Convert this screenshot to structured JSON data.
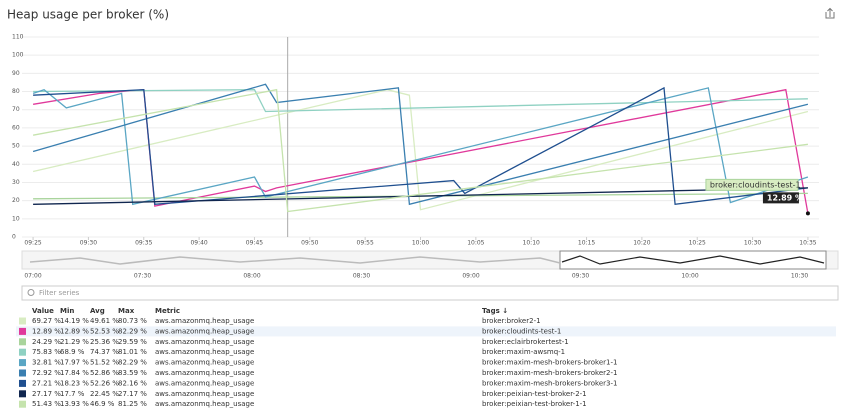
{
  "header": {
    "title": "Heap usage per broker (%)"
  },
  "chart_data": {
    "type": "line",
    "xlim": [
      "09:24",
      "10:36"
    ],
    "xticks": [
      "09:25",
      "09:30",
      "09:35",
      "09:40",
      "09:45",
      "09:50",
      "09:55",
      "10:00",
      "10:05",
      "10:10",
      "10:15",
      "10:20",
      "10:25",
      "10:30",
      "10:35"
    ],
    "ylim": [
      0,
      110
    ],
    "yticks": [
      0,
      10,
      20,
      30,
      40,
      50,
      60,
      70,
      80,
      90,
      100,
      110
    ],
    "grid": true,
    "crosshair": "09:48",
    "tooltip": {
      "series": 1,
      "label": "broker:cloudints-test-1",
      "value_label": "12.89 %"
    },
    "series": [
      {
        "name": "broker:broker2-1",
        "color": "#d8ecc2",
        "x": [
          "09:25",
          "09:57",
          "09:59",
          "10:00",
          "10:35"
        ],
        "values": [
          36,
          81,
          78,
          15,
          69
        ]
      },
      {
        "name": "broker:cloudints-test-1",
        "color": "#e0399b",
        "x": [
          "09:25",
          "09:31",
          "09:35",
          "09:36",
          "09:45",
          "09:46",
          "09:47",
          "10:33",
          "10:35"
        ],
        "values": [
          73,
          79,
          81,
          17,
          28,
          25,
          27,
          81,
          13
        ]
      },
      {
        "name": "broker:eclairbrokertest-1",
        "color": "#a9d49c",
        "x": [
          "09:25",
          "10:35"
        ],
        "values": [
          21,
          24
        ]
      },
      {
        "name": "broker:maxim-awsmq-1",
        "color": "#8fd1c2",
        "x": [
          "09:25",
          "09:45",
          "09:46",
          "10:35"
        ],
        "values": [
          80,
          81,
          69,
          76
        ]
      },
      {
        "name": "broker:maxim-mesh-brokers-broker1-1",
        "color": "#5aa6c4",
        "x": [
          "09:25",
          "09:26",
          "09:28",
          "09:33",
          "09:34",
          "09:45",
          "09:46",
          "10:26",
          "10:28",
          "10:35"
        ],
        "values": [
          79,
          81,
          71,
          79,
          18,
          33,
          22,
          82,
          19,
          33
        ]
      },
      {
        "name": "broker:maxim-mesh-brokers-broker2-1",
        "color": "#3a7fb0",
        "x": [
          "09:25",
          "09:46",
          "09:47",
          "09:58",
          "09:59",
          "10:35"
        ],
        "values": [
          47,
          84,
          74,
          82,
          18,
          73
        ]
      },
      {
        "name": "broker:maxim-mesh-brokers-broker3-1",
        "color": "#1f4f8f",
        "x": [
          "09:25",
          "09:35",
          "09:36",
          "10:03",
          "10:04",
          "10:22",
          "10:23",
          "10:35"
        ],
        "values": [
          78,
          81,
          18,
          31,
          24,
          82,
          18,
          27
        ]
      },
      {
        "name": "broker:peixian-test-broker-2-1",
        "color": "#10264f",
        "x": [
          "09:25",
          "10:35"
        ],
        "values": [
          18,
          27
        ]
      },
      {
        "name": "broker:peixian-test-broker-1-1",
        "color": "#c5e3ad",
        "x": [
          "09:25",
          "09:47",
          "09:48",
          "10:35"
        ],
        "values": [
          56,
          81,
          14,
          51
        ]
      }
    ]
  },
  "navigator": {
    "ticks": [
      "07:00",
      "07:30",
      "08:00",
      "08:30",
      "09:00",
      "09:30",
      "10:00",
      "10:30"
    ]
  },
  "filter": {
    "placeholder": "Filter series"
  },
  "table": {
    "columns": [
      "Value",
      "Min",
      "Avg",
      "Max",
      "Metric",
      "Tags ↓"
    ],
    "rows": [
      [
        "69.27 %",
        "14.19 %",
        "49.61 %",
        "80.73 %",
        "aws.amazonmq.heap_usage"
      ],
      [
        "12.89 %",
        "12.89 %",
        "52.53 %",
        "82.29 %",
        "aws.amazonmq.heap_usage"
      ],
      [
        "24.29 %",
        "21.29 %",
        "25.36 %",
        "29.59 %",
        "aws.amazonmq.heap_usage"
      ],
      [
        "75.83 %",
        "68.9 %",
        "74.37 %",
        "81.01 %",
        "aws.amazonmq.heap_usage"
      ],
      [
        "32.81 %",
        "17.97 %",
        "51.52 %",
        "82.29 %",
        "aws.amazonmq.heap_usage"
      ],
      [
        "72.92 %",
        "17.84 %",
        "52.86 %",
        "83.59 %",
        "aws.amazonmq.heap_usage"
      ],
      [
        "27.21 %",
        "18.23 %",
        "52.26 %",
        "82.16 %",
        "aws.amazonmq.heap_usage"
      ],
      [
        "27.17 %",
        "17.7 %",
        "22.45 %",
        "27.17 %",
        "aws.amazonmq.heap_usage"
      ],
      [
        "51.43 %",
        "13.93 %",
        "46.9 %",
        "81.25 %",
        "aws.amazonmq.heap_usage"
      ]
    ]
  }
}
